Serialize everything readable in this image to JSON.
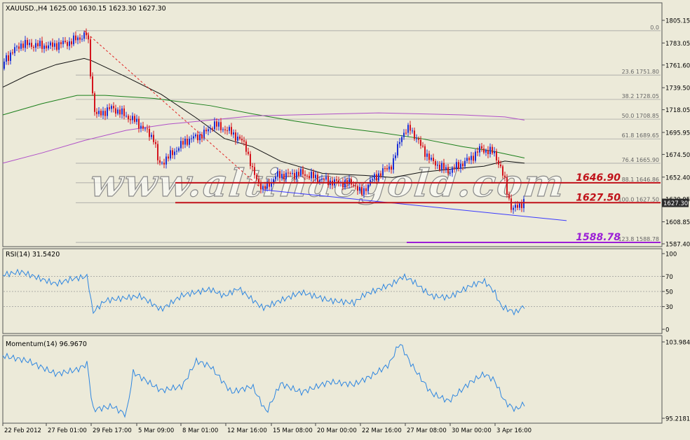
{
  "header": {
    "symbol_info": "XAUUSD.,H4  1625.00 1630.15 1623.30 1627.30"
  },
  "watermark": {
    "text": "www.altinaegold.com"
  },
  "price_axis": {
    "ticks": [
      "1805.15",
      "1783.05",
      "1761.60",
      "1739.50",
      "1718.05",
      "1695.95",
      "1674.50",
      "1652.40",
      "1630.95",
      "1608.85",
      "1587.40"
    ],
    "current_price": "1627.30"
  },
  "fibonacci": {
    "levels": [
      {
        "label": "0.0",
        "price": 1795
      },
      {
        "label": "23.6 1751.80",
        "price": 1751.8
      },
      {
        "label": "38.2 1728.05",
        "price": 1728.05
      },
      {
        "label": "50.0 1708.85",
        "price": 1708.85
      },
      {
        "label": "61.8 1689.65",
        "price": 1689.65
      },
      {
        "label": "76.4 1665.90",
        "price": 1665.9
      },
      {
        "label": "88.1 1646.86",
        "price": 1646.86
      },
      {
        "label": "100.0 1627.50",
        "price": 1627.5
      },
      {
        "label": "123.8 1588.78",
        "price": 1588.78
      }
    ]
  },
  "key_levels": [
    {
      "label": "1646.90",
      "price": 1646.9,
      "color": "#c0121a"
    },
    {
      "label": "1627.50",
      "price": 1627.5,
      "color": "#c0121a"
    },
    {
      "label": "1588.78",
      "price": 1588.78,
      "color": "#9b1fd6"
    }
  ],
  "rsi": {
    "title": "RSI(14) 31.5420",
    "ticks": [
      "100",
      "70",
      "50",
      "30",
      "0"
    ],
    "levels": [
      70,
      50,
      30
    ]
  },
  "momentum": {
    "title": "Momentum(14) 96.9670",
    "ticks": [
      "103.9843",
      "95.2181"
    ]
  },
  "time_axis": {
    "labels": [
      "22 Feb 2012",
      "27 Feb 01:00",
      "29 Feb 17:00",
      "5 Mar 09:00",
      "8 Mar 01:00",
      "12 Mar 16:00",
      "15 Mar 08:00",
      "20 Mar 00:00",
      "22 Mar 16:00",
      "27 Mar 08:00",
      "30 Mar 00:00",
      "3 Apr 16:00"
    ]
  },
  "colors": {
    "background": "#ecead9",
    "bull_candle": "#1b2fd6",
    "bear_candle": "#d4141d",
    "ma_black": "#111111",
    "ma_green": "#1a7f1a",
    "ma_purple": "#b050c8",
    "trend_line": "#3a3aff",
    "indicator_line": "#2e86e0",
    "key_level_red": "#c0121a",
    "key_level_purple": "#9b1fd6"
  },
  "chart_data": {
    "type": "line",
    "title": "XAUUSD.,H4",
    "xlabel": "",
    "ylabel": "",
    "ylim": [
      1580,
      1816
    ],
    "x": [
      "22 Feb 2012",
      "27 Feb 01:00",
      "29 Feb 17:00",
      "5 Mar 09:00",
      "8 Mar 01:00",
      "12 Mar 16:00",
      "15 Mar 08:00",
      "20 Mar 00:00",
      "22 Mar 16:00",
      "27 Mar 08:00",
      "30 Mar 00:00",
      "3 Apr 16:00"
    ],
    "series": [
      {
        "values": [
          1775,
          1790,
          1710,
          1668,
          1690,
          1662,
          1647,
          1640,
          1636,
          1688,
          1673,
          1627
        ]
      }
    ],
    "note_ohlc_last": {
      "open": 1625.0,
      "high": 1630.15,
      "low": 1623.3,
      "close": 1627.3
    }
  }
}
